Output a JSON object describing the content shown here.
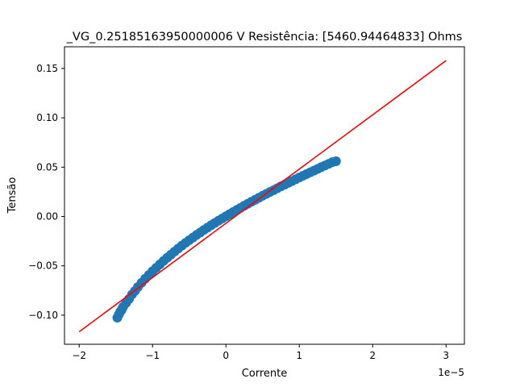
{
  "chart_data": {
    "type": "scatter",
    "title": "_VG_0.25185163950000006 V  Resistência: [5460.94464833] Ohms",
    "xlabel": "Corrente",
    "ylabel": "Tensão",
    "x_offset_text": "1e−5",
    "xlim": [
      -2.2e-05,
      3.25e-05
    ],
    "ylim": [
      -0.1295,
      0.172
    ],
    "x_ticks": [
      {
        "value": -2e-05,
        "label": "−2"
      },
      {
        "value": -1e-05,
        "label": "−1"
      },
      {
        "value": 0,
        "label": "0"
      },
      {
        "value": 1e-05,
        "label": "1"
      },
      {
        "value": 2e-05,
        "label": "2"
      },
      {
        "value": 3e-05,
        "label": "3"
      }
    ],
    "y_ticks": [
      {
        "value": -0.1,
        "label": "−0.10"
      },
      {
        "value": -0.05,
        "label": "−0.05"
      },
      {
        "value": 0.0,
        "label": "0.00"
      },
      {
        "value": 0.05,
        "label": "0.05"
      },
      {
        "value": 0.1,
        "label": "0.10"
      },
      {
        "value": 0.15,
        "label": "0.15"
      }
    ],
    "grid": false,
    "series": [
      {
        "kind": "scatter",
        "color": "#1f77b4",
        "points": [
          [
            -1.48e-05,
            -0.1025
          ],
          [
            -1.46e-05,
            -0.0995
          ],
          [
            -1.44e-05,
            -0.0965
          ],
          [
            -1.42e-05,
            -0.0945
          ],
          [
            -1.4e-05,
            -0.0915
          ],
          [
            -1.36e-05,
            -0.0875
          ],
          [
            -1.32e-05,
            -0.0835
          ],
          [
            -1.28e-05,
            -0.079
          ],
          [
            -1.24e-05,
            -0.0755
          ],
          [
            -1.2e-05,
            -0.0715
          ],
          [
            -1.15e-05,
            -0.0672
          ],
          [
            -1.1e-05,
            -0.063
          ],
          [
            -1.05e-05,
            -0.0592
          ],
          [
            -1e-05,
            -0.0555
          ],
          [
            -9.5e-06,
            -0.052
          ],
          [
            -9e-06,
            -0.0485
          ],
          [
            -8.5e-06,
            -0.045
          ],
          [
            -8e-06,
            -0.0418
          ],
          [
            -7.5e-06,
            -0.0387
          ],
          [
            -7e-06,
            -0.0355
          ],
          [
            -6.5e-06,
            -0.0325
          ],
          [
            -6e-06,
            -0.0295
          ],
          [
            -5.5e-06,
            -0.0267
          ],
          [
            -5e-06,
            -0.024
          ],
          [
            -4.5e-06,
            -0.0213
          ],
          [
            -4e-06,
            -0.0187
          ],
          [
            -3.5e-06,
            -0.0162
          ],
          [
            -3e-06,
            -0.0137
          ],
          [
            -2.5e-06,
            -0.0112
          ],
          [
            -2e-06,
            -0.0088
          ],
          [
            -1.5e-06,
            -0.0065
          ],
          [
            -1e-06,
            -0.0042
          ],
          [
            -5e-07,
            -0.002
          ],
          [
            0.0,
            0.0002
          ],
          [
            5e-07,
            0.0024
          ],
          [
            1e-06,
            0.0046
          ],
          [
            1.5e-06,
            0.0067
          ],
          [
            2e-06,
            0.0088
          ],
          [
            2.5e-06,
            0.0109
          ],
          [
            3e-06,
            0.013
          ],
          [
            3.5e-06,
            0.015
          ],
          [
            4e-06,
            0.017
          ],
          [
            4.5e-06,
            0.019
          ],
          [
            5e-06,
            0.021
          ],
          [
            5.5e-06,
            0.0229
          ],
          [
            6e-06,
            0.0248
          ],
          [
            6.5e-06,
            0.0267
          ],
          [
            7e-06,
            0.0286
          ],
          [
            7.5e-06,
            0.0305
          ],
          [
            8e-06,
            0.0323
          ],
          [
            8.5e-06,
            0.0341
          ],
          [
            9e-06,
            0.0359
          ],
          [
            9.5e-06,
            0.0377
          ],
          [
            1e-05,
            0.0395
          ],
          [
            1.05e-05,
            0.0413
          ],
          [
            1.1e-05,
            0.043
          ],
          [
            1.15e-05,
            0.0448
          ],
          [
            1.2e-05,
            0.0465
          ],
          [
            1.25e-05,
            0.0482
          ],
          [
            1.3e-05,
            0.05
          ],
          [
            1.35e-05,
            0.0517
          ],
          [
            1.4e-05,
            0.0533
          ],
          [
            1.45e-05,
            0.0551
          ],
          [
            1.5e-05,
            0.056
          ]
        ]
      },
      {
        "kind": "line",
        "color": "#ff0000",
        "points": [
          [
            -2e-05,
            -0.1168
          ],
          [
            3e-05,
            0.158
          ]
        ]
      }
    ]
  }
}
